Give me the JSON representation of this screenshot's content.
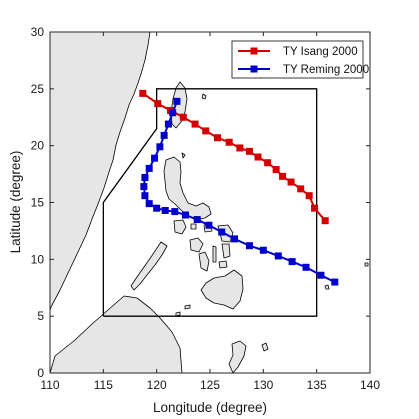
{
  "chart_data": {
    "type": "line",
    "xlabel": "Longitude (degree)",
    "ylabel": "Latitude (degree)",
    "xlim": [
      110,
      140
    ],
    "ylim": [
      0,
      30
    ],
    "xticks": [
      110,
      115,
      120,
      125,
      130,
      135,
      140
    ],
    "yticks": [
      0,
      5,
      10,
      15,
      20,
      25,
      30
    ],
    "grid": false,
    "legend_position": "top-right",
    "colors": {
      "land_fill": "#e6e6e6",
      "coast": "#000000",
      "domain_box": "#000000"
    },
    "series": [
      {
        "name": "TY Isang 2000",
        "color": "#d40000",
        "marker": "square",
        "x": [
          135.8,
          134.8,
          134.3,
          133.5,
          132.6,
          131.8,
          131.2,
          130.4,
          129.5,
          128.7,
          127.8,
          126.8,
          125.7,
          124.6,
          123.6,
          122.5,
          121.3,
          120.1,
          118.7
        ],
        "y": [
          13.4,
          14.5,
          15.6,
          16.2,
          16.8,
          17.3,
          17.9,
          18.5,
          19.0,
          19.5,
          19.8,
          20.3,
          20.7,
          21.3,
          21.9,
          22.5,
          23.1,
          23.7,
          24.6
        ]
      },
      {
        "name": "TY Reming 2000",
        "color": "#0000cc",
        "marker": "square",
        "x": [
          136.7,
          135.4,
          134.0,
          132.7,
          131.4,
          130.0,
          128.7,
          127.3,
          126.1,
          124.9,
          123.8,
          122.7,
          121.7,
          120.8,
          120.0,
          119.3,
          118.9,
          118.8,
          118.9,
          119.3,
          119.8,
          120.3,
          120.7,
          121.1,
          121.5,
          121.9
        ],
        "y": [
          8.0,
          8.6,
          9.3,
          9.8,
          10.3,
          10.8,
          11.2,
          11.8,
          12.4,
          13.0,
          13.5,
          13.9,
          14.2,
          14.3,
          14.5,
          14.9,
          15.6,
          16.4,
          17.2,
          18.0,
          18.9,
          19.9,
          20.9,
          21.9,
          22.9,
          23.9
        ]
      }
    ],
    "domain_box": {
      "x": [
        115,
        115,
        120,
        120,
        135,
        135,
        115
      ],
      "y": [
        5,
        15,
        21.5,
        25,
        25,
        5,
        5
      ]
    }
  }
}
